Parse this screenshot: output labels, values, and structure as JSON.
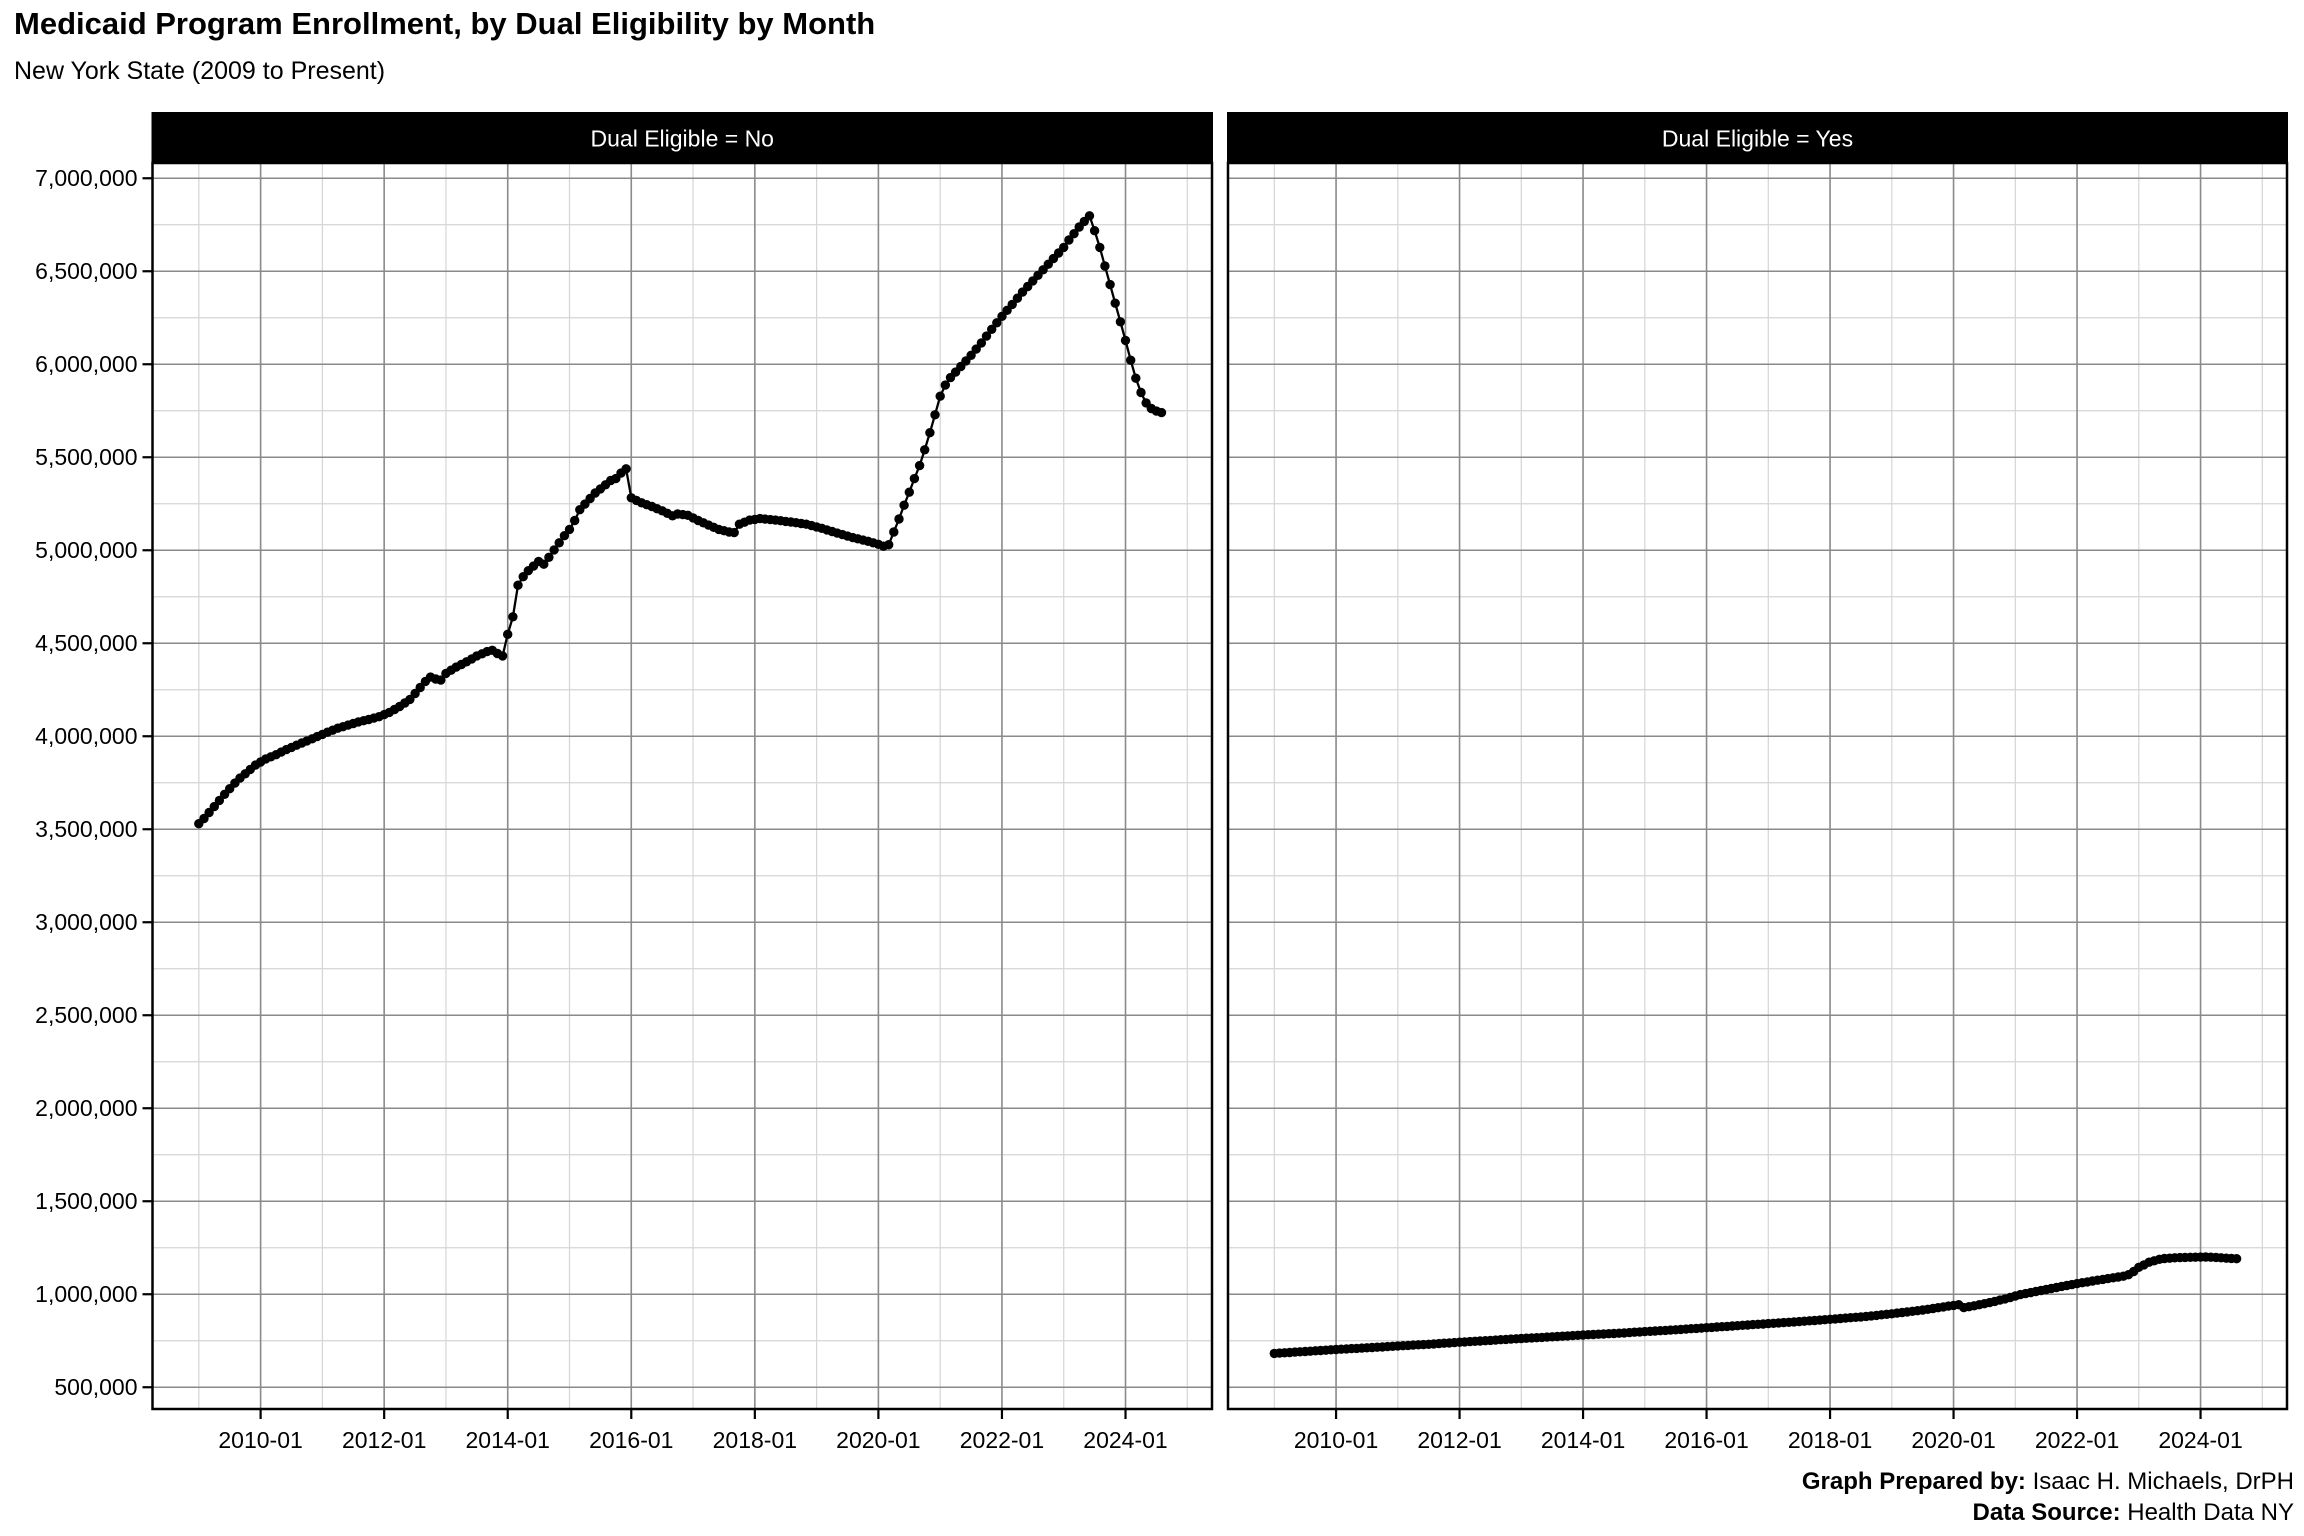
{
  "chart_data": {
    "type": "line",
    "title": "Medicaid Program Enrollment, by Dual Eligibility by Month",
    "subtitle": "New York State (2009 to Present)",
    "facet_variable": "Dual Eligible",
    "data_frequency": "monthly",
    "data_range": [
      "2009-01",
      "2024-08"
    ],
    "x_axis": {
      "tick_labels": [
        "2010-01",
        "2012-01",
        "2014-01",
        "2016-01",
        "2018-01",
        "2020-01",
        "2022-01",
        "2024-01"
      ],
      "tick_years": [
        2010,
        2012,
        2014,
        2016,
        2018,
        2020,
        2022,
        2024
      ],
      "minor_interval_years": 1,
      "domain_years": [
        2008.25,
        2025.4
      ]
    },
    "y_axis": {
      "tick_values": [
        500000,
        1000000,
        1500000,
        2000000,
        2500000,
        3000000,
        3500000,
        4000000,
        4500000,
        5000000,
        5500000,
        6000000,
        6500000,
        7000000
      ],
      "tick_labels": [
        "500,000",
        "1,000,000",
        "1,500,000",
        "2,000,000",
        "2,500,000",
        "3,000,000",
        "3,500,000",
        "4,000,000",
        "4,500,000",
        "5,000,000",
        "5,500,000",
        "6,000,000",
        "6,500,000",
        "7,000,000"
      ],
      "minor_interval": 250000,
      "domain": [
        383000,
        7082000
      ],
      "gridlines": true
    },
    "anchor_note": "series_anchors are [YYYY-MM, enrollment] values read from the plot; dots are monthly, interpolated linearly between anchors.",
    "facets": [
      {
        "label": "Dual Eligible = No",
        "series_anchors": [
          [
            "2009-01",
            3530000
          ],
          [
            "2009-02",
            3558000
          ],
          [
            "2009-03",
            3590000
          ],
          [
            "2009-04",
            3622000
          ],
          [
            "2009-05",
            3655000
          ],
          [
            "2009-06",
            3688000
          ],
          [
            "2009-07",
            3718000
          ],
          [
            "2009-08",
            3748000
          ],
          [
            "2009-09",
            3775000
          ],
          [
            "2009-10",
            3798000
          ],
          [
            "2009-11",
            3822000
          ],
          [
            "2009-12",
            3845000
          ],
          [
            "2010-02",
            3878000
          ],
          [
            "2010-04",
            3901000
          ],
          [
            "2010-06",
            3928000
          ],
          [
            "2010-08",
            3952000
          ],
          [
            "2010-10",
            3975000
          ],
          [
            "2010-12",
            3998000
          ],
          [
            "2011-02",
            4022000
          ],
          [
            "2011-04",
            4043000
          ],
          [
            "2011-06",
            4060000
          ],
          [
            "2011-08",
            4077000
          ],
          [
            "2011-10",
            4090000
          ],
          [
            "2011-12",
            4105000
          ],
          [
            "2012-02",
            4128000
          ],
          [
            "2012-04",
            4160000
          ],
          [
            "2012-06",
            4198000
          ],
          [
            "2012-08",
            4262000
          ],
          [
            "2012-09",
            4295000
          ],
          [
            "2012-10",
            4318000
          ],
          [
            "2012-11",
            4308000
          ],
          [
            "2012-12",
            4302000
          ],
          [
            "2013-01",
            4338000
          ],
          [
            "2013-02",
            4355000
          ],
          [
            "2013-03",
            4372000
          ],
          [
            "2013-05",
            4400000
          ],
          [
            "2013-07",
            4432000
          ],
          [
            "2013-09",
            4455000
          ],
          [
            "2013-10",
            4462000
          ],
          [
            "2013-11",
            4445000
          ],
          [
            "2013-12",
            4432000
          ],
          [
            "2014-01",
            4548000
          ],
          [
            "2014-02",
            4642000
          ],
          [
            "2014-03",
            4812000
          ],
          [
            "2014-04",
            4858000
          ],
          [
            "2014-05",
            4890000
          ],
          [
            "2014-06",
            4915000
          ],
          [
            "2014-07",
            4940000
          ],
          [
            "2014-08",
            4925000
          ],
          [
            "2014-09",
            4962000
          ],
          [
            "2014-10",
            5002000
          ],
          [
            "2014-11",
            5040000
          ],
          [
            "2014-12",
            5078000
          ],
          [
            "2015-01",
            5112000
          ],
          [
            "2015-02",
            5160000
          ],
          [
            "2015-03",
            5218000
          ],
          [
            "2015-04",
            5248000
          ],
          [
            "2015-05",
            5278000
          ],
          [
            "2015-06",
            5308000
          ],
          [
            "2015-07",
            5330000
          ],
          [
            "2015-08",
            5352000
          ],
          [
            "2015-09",
            5375000
          ],
          [
            "2015-10",
            5385000
          ],
          [
            "2015-11",
            5415000
          ],
          [
            "2015-12",
            5438000
          ],
          [
            "2016-01",
            5282000
          ],
          [
            "2016-02",
            5268000
          ],
          [
            "2016-03",
            5255000
          ],
          [
            "2016-05",
            5235000
          ],
          [
            "2016-07",
            5212000
          ],
          [
            "2016-09",
            5185000
          ],
          [
            "2016-10",
            5195000
          ],
          [
            "2016-12",
            5188000
          ],
          [
            "2017-02",
            5160000
          ],
          [
            "2017-04",
            5135000
          ],
          [
            "2017-06",
            5112000
          ],
          [
            "2017-08",
            5098000
          ],
          [
            "2017-09",
            5095000
          ],
          [
            "2017-10",
            5140000
          ],
          [
            "2017-12",
            5162000
          ],
          [
            "2018-02",
            5170000
          ],
          [
            "2018-05",
            5162000
          ],
          [
            "2018-08",
            5152000
          ],
          [
            "2018-11",
            5140000
          ],
          [
            "2019-02",
            5118000
          ],
          [
            "2019-05",
            5092000
          ],
          [
            "2019-08",
            5068000
          ],
          [
            "2019-11",
            5048000
          ],
          [
            "2020-01",
            5032000
          ],
          [
            "2020-02",
            5022000
          ],
          [
            "2020-03",
            5030000
          ],
          [
            "2020-04",
            5098000
          ],
          [
            "2020-05",
            5168000
          ],
          [
            "2020-06",
            5242000
          ],
          [
            "2020-07",
            5312000
          ],
          [
            "2020-08",
            5385000
          ],
          [
            "2020-09",
            5455000
          ],
          [
            "2020-10",
            5540000
          ],
          [
            "2020-11",
            5632000
          ],
          [
            "2020-12",
            5728000
          ],
          [
            "2021-01",
            5828000
          ],
          [
            "2021-02",
            5888000
          ],
          [
            "2021-03",
            5928000
          ],
          [
            "2021-05",
            5988000
          ],
          [
            "2021-07",
            6048000
          ],
          [
            "2021-09",
            6115000
          ],
          [
            "2021-11",
            6188000
          ],
          [
            "2022-01",
            6258000
          ],
          [
            "2022-03",
            6322000
          ],
          [
            "2022-05",
            6388000
          ],
          [
            "2022-07",
            6448000
          ],
          [
            "2022-09",
            6508000
          ],
          [
            "2022-11",
            6568000
          ],
          [
            "2023-01",
            6628000
          ],
          [
            "2023-02",
            6668000
          ],
          [
            "2023-03",
            6702000
          ],
          [
            "2023-04",
            6738000
          ],
          [
            "2023-05",
            6768000
          ],
          [
            "2023-06",
            6798000
          ],
          [
            "2023-07",
            6718000
          ],
          [
            "2023-08",
            6628000
          ],
          [
            "2023-09",
            6528000
          ],
          [
            "2023-10",
            6428000
          ],
          [
            "2023-11",
            6328000
          ],
          [
            "2023-12",
            6228000
          ],
          [
            "2024-01",
            6128000
          ],
          [
            "2024-02",
            6022000
          ],
          [
            "2024-03",
            5925000
          ],
          [
            "2024-04",
            5848000
          ],
          [
            "2024-05",
            5792000
          ],
          [
            "2024-06",
            5762000
          ],
          [
            "2024-07",
            5748000
          ],
          [
            "2024-08",
            5740000
          ]
        ]
      },
      {
        "label": "Dual Eligible = Yes",
        "series_anchors": [
          [
            "2009-01",
            682000
          ],
          [
            "2009-07",
            692000
          ],
          [
            "2010-01",
            703000
          ],
          [
            "2010-07",
            712000
          ],
          [
            "2011-01",
            722000
          ],
          [
            "2011-07",
            731000
          ],
          [
            "2012-01",
            742000
          ],
          [
            "2012-07",
            752000
          ],
          [
            "2013-01",
            762000
          ],
          [
            "2013-07",
            771000
          ],
          [
            "2014-01",
            781000
          ],
          [
            "2014-07",
            789000
          ],
          [
            "2015-01",
            799000
          ],
          [
            "2015-07",
            809000
          ],
          [
            "2016-01",
            820000
          ],
          [
            "2016-07",
            831000
          ],
          [
            "2017-01",
            842000
          ],
          [
            "2017-07",
            853000
          ],
          [
            "2018-01",
            865000
          ],
          [
            "2018-07",
            878000
          ],
          [
            "2019-01",
            895000
          ],
          [
            "2019-07",
            915000
          ],
          [
            "2019-11",
            932000
          ],
          [
            "2020-01",
            940000
          ],
          [
            "2020-02",
            944000
          ],
          [
            "2020-03",
            928000
          ],
          [
            "2020-05",
            938000
          ],
          [
            "2020-08",
            955000
          ],
          [
            "2020-11",
            975000
          ],
          [
            "2021-02",
            998000
          ],
          [
            "2021-06",
            1020000
          ],
          [
            "2021-10",
            1042000
          ],
          [
            "2022-02",
            1062000
          ],
          [
            "2022-06",
            1080000
          ],
          [
            "2022-10",
            1097000
          ],
          [
            "2022-11",
            1105000
          ],
          [
            "2022-12",
            1122000
          ],
          [
            "2023-01",
            1145000
          ],
          [
            "2023-02",
            1158000
          ],
          [
            "2023-03",
            1172000
          ],
          [
            "2023-04",
            1180000
          ],
          [
            "2023-05",
            1188000
          ],
          [
            "2023-06",
            1192000
          ],
          [
            "2023-08",
            1196000
          ],
          [
            "2023-10",
            1198000
          ],
          [
            "2023-12",
            1199000
          ],
          [
            "2024-02",
            1200000
          ],
          [
            "2024-04",
            1198000
          ],
          [
            "2024-06",
            1194000
          ],
          [
            "2024-08",
            1191000
          ]
        ]
      }
    ],
    "styles": {
      "point_color": "#000000",
      "line_color": "#000000",
      "strip_bg": "#000000",
      "strip_text_color": "#ffffff",
      "grid_major": "#8a8a8a",
      "grid_minor": "#d5d5d5",
      "panel_border": "#000000",
      "background": "#ffffff"
    },
    "legend": "none"
  },
  "footer": {
    "prepared_by_label": "Graph Prepared by:",
    "prepared_by_value": " Isaac H. Michaels, DrPH",
    "data_source_label": "Data Source:",
    "data_source_value": " Health Data NY"
  }
}
